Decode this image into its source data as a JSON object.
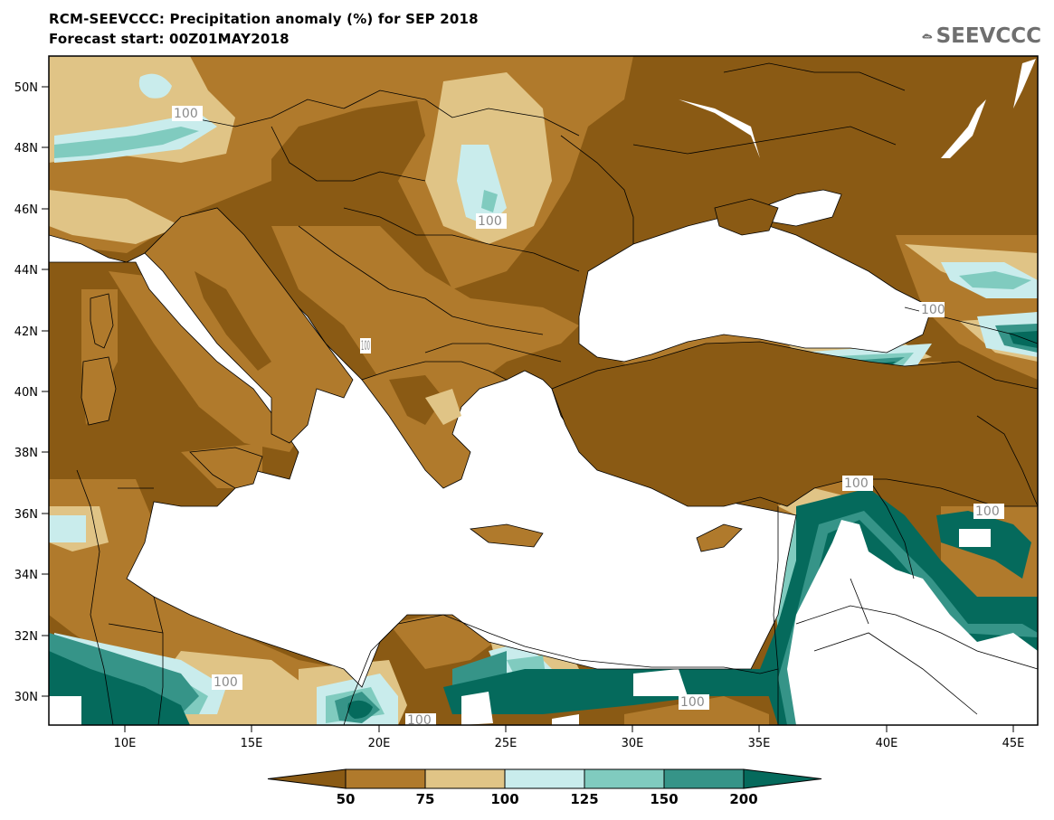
{
  "title": {
    "line1": "RCM-SEEVCCC: Precipitation anomaly (%) for SEP 2018",
    "line2": "Forecast start: 00Z01MAY2018"
  },
  "logo": {
    "text": "SEEVCCC",
    "icon": "cloud-logo-icon"
  },
  "axes": {
    "lon_range": [
      7,
      46
    ],
    "lat_range": [
      29,
      51
    ],
    "lon_ticks": [
      "10E",
      "15E",
      "20E",
      "25E",
      "30E",
      "35E",
      "40E",
      "45E"
    ],
    "lat_ticks": [
      "50N",
      "48N",
      "46N",
      "44N",
      "42N",
      "40N",
      "38N",
      "36N",
      "34N",
      "32N",
      "30N"
    ]
  },
  "colorbar": {
    "labels": [
      "50",
      "75",
      "100",
      "125",
      "150",
      "200"
    ],
    "colors": [
      "#8a5a14",
      "#b07a2c",
      "#e0c486",
      "#c9ecec",
      "#80cbbf",
      "#369488",
      "#056a5c"
    ]
  },
  "contour_labels": [
    "100",
    "100",
    "100",
    "100",
    "100",
    "100",
    "100",
    "100",
    "100"
  ],
  "palette": {
    "sea": "#ffffff",
    "base": "#8a5a14"
  }
}
